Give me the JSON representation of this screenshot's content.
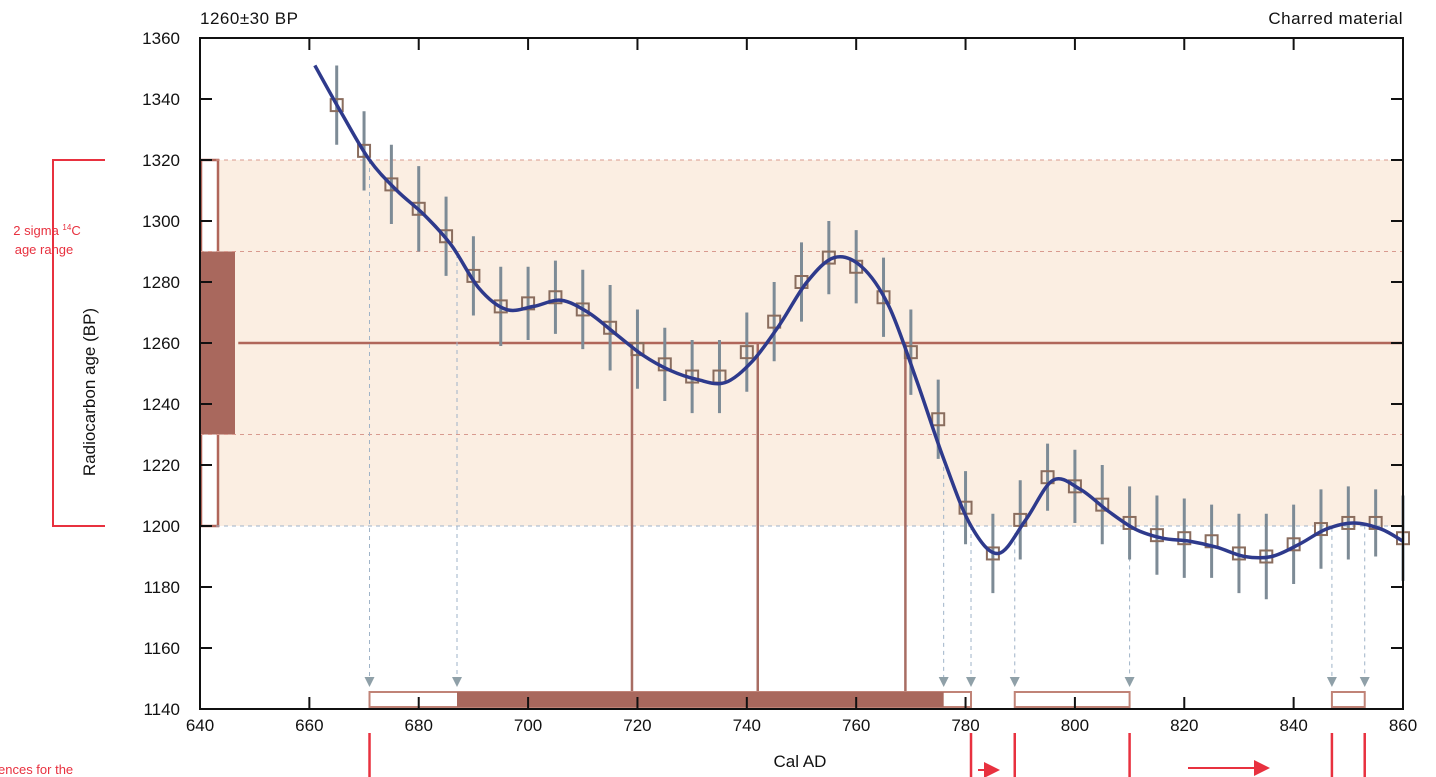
{
  "chart_data": {
    "type": "line",
    "title": "1260±30 BP",
    "subtitle": "Charred material",
    "xlabel": "Cal AD",
    "ylabel": "Radiocarbon age (BP)",
    "xlim": [
      640,
      860
    ],
    "ylim": [
      1140,
      1360
    ],
    "x_ticks": [
      640,
      660,
      680,
      700,
      720,
      740,
      760,
      780,
      800,
      820,
      840,
      860
    ],
    "y_ticks": [
      1140,
      1160,
      1180,
      1200,
      1220,
      1240,
      1260,
      1280,
      1300,
      1320,
      1340,
      1360
    ],
    "sample": {
      "age": 1260,
      "sigma": 30
    },
    "calibration_curve": {
      "x": [
        661,
        666,
        671,
        676,
        681,
        686,
        691,
        696,
        701,
        706,
        711,
        716,
        721,
        726,
        731,
        736,
        741,
        746,
        751,
        756,
        761,
        766,
        771,
        776,
        781,
        786,
        791,
        796,
        801,
        806,
        811,
        816,
        821,
        826,
        831,
        836,
        841,
        846,
        851,
        856,
        860
      ],
      "y": [
        1351,
        1335,
        1320,
        1310,
        1302,
        1292,
        1278,
        1271,
        1272,
        1274,
        1270,
        1263,
        1256,
        1251,
        1248,
        1247,
        1254,
        1266,
        1280,
        1288,
        1285,
        1272,
        1248,
        1222,
        1200,
        1191,
        1202,
        1215,
        1212,
        1205,
        1199,
        1196,
        1195,
        1193,
        1190,
        1190,
        1194,
        1199,
        1201,
        1199,
        1195
      ]
    },
    "data_points": {
      "x": [
        665,
        670,
        675,
        680,
        685,
        690,
        695,
        700,
        705,
        710,
        715,
        720,
        725,
        730,
        735,
        740,
        745,
        750,
        755,
        760,
        765,
        770,
        775,
        780,
        785,
        790,
        795,
        800,
        805,
        810,
        815,
        820,
        825,
        830,
        835,
        840,
        845,
        850,
        855,
        860
      ],
      "y": [
        1338,
        1323,
        1312,
        1304,
        1295,
        1282,
        1272,
        1273,
        1275,
        1271,
        1265,
        1258,
        1253,
        1249,
        1249,
        1257,
        1267,
        1280,
        1288,
        1285,
        1275,
        1257,
        1235,
        1206,
        1191,
        1202,
        1216,
        1213,
        1207,
        1201,
        1197,
        1196,
        1195,
        1191,
        1190,
        1194,
        1199,
        1201,
        1201,
        1196
      ],
      "error": [
        13,
        13,
        13,
        14,
        13,
        13,
        13,
        12,
        12,
        13,
        14,
        13,
        12,
        12,
        12,
        13,
        13,
        13,
        12,
        12,
        13,
        14,
        13,
        12,
        13,
        13,
        11,
        12,
        13,
        12,
        13,
        13,
        12,
        13,
        14,
        13,
        13,
        12,
        11,
        14
      ]
    },
    "sigma_ranges": {
      "two_sigma": [
        [
          671,
          781
        ],
        [
          789,
          810
        ],
        [
          847,
          853
        ]
      ],
      "one_sigma": [
        [
          687,
          776
        ]
      ],
      "intercepts": [
        719,
        742,
        769
      ]
    },
    "annotations": [
      "2 sigma ¹⁴C age range",
      "ences for the"
    ],
    "colors": {
      "curve": "#2e3a8c",
      "data_points": "#8a6d5e",
      "error_bars": "#7d8b96",
      "sample_line": "#b0665a",
      "band_fill": "#fbeee2",
      "one_sigma_fill": "#a9685d",
      "annotation": "#e8313f"
    }
  }
}
